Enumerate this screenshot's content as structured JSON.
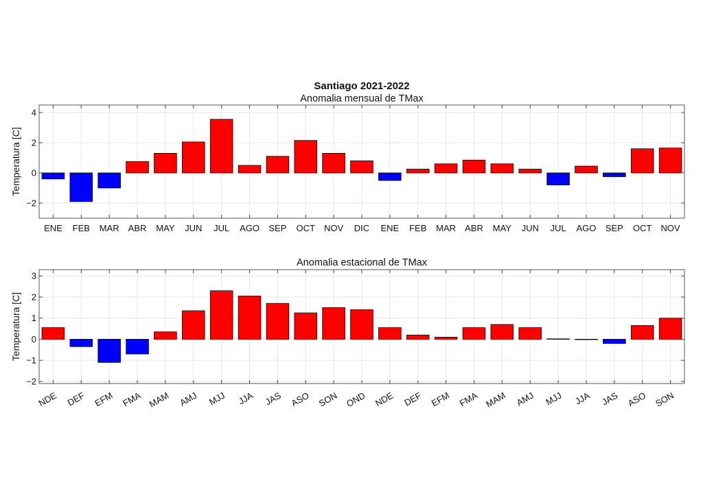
{
  "figure": {
    "title": "Santiago 2021-2022"
  },
  "chart_data": [
    {
      "type": "bar",
      "title": "Anomalia mensual de TMax",
      "xlabel": "",
      "ylabel": "Temperatura [C]",
      "ylim": [
        -3,
        4.5
      ],
      "yticks": [
        -2,
        0,
        2,
        4
      ],
      "grid": true,
      "categories": [
        "ENE",
        "FEB",
        "MAR",
        "ABR",
        "MAY",
        "JUN",
        "JUL",
        "AGO",
        "SEP",
        "OCT",
        "NOV",
        "DIC",
        "ENE",
        "FEB",
        "MAR",
        "ABR",
        "MAY",
        "JUN",
        "JUL",
        "AGO",
        "SEP",
        "OCT",
        "NOV"
      ],
      "values": [
        -0.4,
        -1.9,
        -1.0,
        0.75,
        1.3,
        2.05,
        3.55,
        0.5,
        1.1,
        2.15,
        1.3,
        0.8,
        -0.5,
        0.25,
        0.6,
        0.85,
        0.6,
        0.25,
        -0.8,
        0.45,
        -0.25,
        1.6,
        1.65
      ],
      "colors": {
        "positive": "#ff0000",
        "negative": "#0000ff"
      }
    },
    {
      "type": "bar",
      "title": "Anomalia estacional de TMax",
      "xlabel": "",
      "ylabel": "Temperatura [C]",
      "ylim": [
        -2.1,
        3.3
      ],
      "yticks": [
        -2,
        -1,
        0,
        1,
        2,
        3
      ],
      "grid": true,
      "categories": [
        "NDE",
        "DEF",
        "EFM",
        "FMA",
        "MAM",
        "AMJ",
        "MJJ",
        "JJA",
        "JAS",
        "ASO",
        "SON",
        "OND",
        "NDE",
        "DEF",
        "EFM",
        "FMA",
        "MAM",
        "AMJ",
        "MJJ",
        "JJA",
        "JAS",
        "ASO",
        "SON"
      ],
      "values": [
        0.55,
        -0.35,
        -1.1,
        -0.7,
        0.35,
        1.35,
        2.3,
        2.05,
        1.7,
        1.25,
        1.5,
        1.4,
        0.55,
        0.2,
        0.1,
        0.55,
        0.7,
        0.55,
        0.02,
        -0.02,
        -0.2,
        0.65,
        1.0
      ],
      "colors": {
        "positive": "#ff0000",
        "negative": "#0000ff"
      }
    }
  ]
}
